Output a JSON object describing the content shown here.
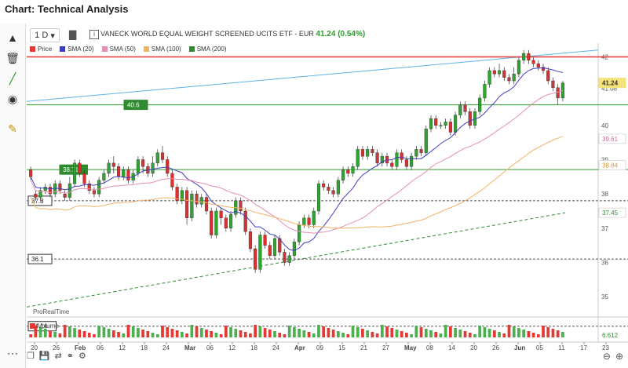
{
  "app_title": "Chart: Technical Analysis",
  "timeframe": "1 D",
  "instrument": {
    "name": "VANECK WORLD EQUAL WEIGHT SCREENED UCITS ETF - EUR",
    "price": "41.24 (0.54%)"
  },
  "legend": [
    {
      "label": "Price",
      "color": "#e53935"
    },
    {
      "label": "SMA (20)",
      "color": "#3f3fbf"
    },
    {
      "label": "SMA (50)",
      "color": "#e58fb5"
    },
    {
      "label": "SMA (100)",
      "color": "#f2b365"
    },
    {
      "label": "SMA (200)",
      "color": "#2e8b2e"
    }
  ],
  "toolbar_icons": [
    "pointer-icon",
    "trash-icon",
    "draw-lines-icon",
    "eye-icon",
    "pencil-icon",
    "more-icon"
  ],
  "bottom_icons": [
    "screenshot-icon",
    "save-icon",
    "share-icon",
    "link-icon",
    "settings-icon"
  ],
  "zoom_icons": [
    "zoom-out-icon",
    "zoom-in-icon"
  ],
  "volume_label": "Volume",
  "realtime_label": "ProRealTime",
  "volume_value": "6.612",
  "chart_data": {
    "type": "candlestick",
    "ylim": [
      34.5,
      42.4
    ],
    "y_ticks": [
      "42",
      "41.08",
      "40",
      "39",
      "38",
      "37",
      "36",
      "35"
    ],
    "x_ticks": [
      "20",
      "26",
      "Feb",
      "06",
      "12",
      "18",
      "24",
      "Mar",
      "06",
      "12",
      "18",
      "24",
      "Apr",
      "09",
      "15",
      "21",
      "27",
      "May",
      "08",
      "14",
      "20",
      "26",
      "Jun",
      "05",
      "11",
      "17",
      "23"
    ],
    "right_labels": [
      {
        "text": "41.24",
        "value": 41.24,
        "bg": "#f4e27a",
        "color": "#333"
      },
      {
        "text": "39.61",
        "value": 39.61,
        "bg": "#fff",
        "color": "#d06a9a"
      },
      {
        "text": "38.84",
        "value": 38.84,
        "bg": "#fff",
        "color": "#d69a3a"
      },
      {
        "text": "37.45",
        "value": 37.45,
        "bg": "#fff",
        "color": "#2e8b2e"
      }
    ],
    "hlines": [
      {
        "value": 42.0,
        "color": "#e53935",
        "style": "solid",
        "label": ""
      },
      {
        "value": 40.6,
        "color": "#2e9d2e",
        "style": "solid",
        "label": "40.6"
      },
      {
        "value": 38.71,
        "color": "#2e9d2e",
        "style": "solid",
        "label": "38.71"
      },
      {
        "value": 37.8,
        "color": "#555",
        "style": "dashed",
        "label": "37.8"
      },
      {
        "value": 36.1,
        "color": "#555",
        "style": "dashed",
        "label": "36.1"
      },
      {
        "value": 34.14,
        "color": "#555",
        "style": "dashed",
        "label": "34.14"
      }
    ],
    "candles": [
      [
        38.7,
        38.5,
        38.8,
        38.4
      ],
      [
        38.0,
        37.9,
        38.1,
        37.8
      ],
      [
        37.9,
        38.1,
        38.2,
        37.8
      ],
      [
        38.1,
        38.2,
        38.3,
        38.0
      ],
      [
        38.2,
        38.0,
        38.3,
        37.9
      ],
      [
        38.0,
        38.3,
        38.4,
        37.9
      ],
      [
        38.3,
        38.1,
        38.4,
        38.0
      ],
      [
        38.0,
        37.9,
        38.1,
        37.8
      ],
      [
        37.9,
        38.3,
        38.5,
        37.8
      ],
      [
        38.3,
        38.9,
        39.0,
        38.2
      ],
      [
        38.9,
        38.6,
        39.0,
        38.5
      ],
      [
        38.6,
        38.3,
        38.7,
        38.2
      ],
      [
        38.3,
        38.1,
        38.4,
        38.0
      ],
      [
        38.1,
        38.0,
        38.2,
        37.9
      ],
      [
        38.0,
        38.4,
        38.5,
        37.9
      ],
      [
        38.4,
        38.6,
        38.7,
        38.3
      ],
      [
        38.6,
        38.9,
        39.0,
        38.5
      ],
      [
        38.9,
        38.8,
        39.1,
        38.6
      ],
      [
        38.8,
        38.5,
        38.9,
        38.4
      ],
      [
        38.5,
        38.7,
        38.8,
        38.4
      ],
      [
        38.7,
        38.4,
        38.8,
        38.3
      ],
      [
        38.4,
        38.6,
        38.7,
        38.3
      ],
      [
        38.6,
        39.0,
        39.1,
        38.5
      ],
      [
        39.0,
        38.8,
        39.1,
        38.6
      ],
      [
        38.8,
        38.6,
        38.9,
        38.5
      ],
      [
        38.6,
        38.9,
        39.1,
        38.5
      ],
      [
        38.9,
        39.2,
        39.3,
        38.8
      ],
      [
        39.2,
        39.0,
        39.4,
        38.9
      ],
      [
        39.0,
        38.6,
        39.1,
        38.5
      ],
      [
        38.6,
        38.2,
        38.7,
        38.1
      ],
      [
        38.2,
        37.8,
        38.3,
        37.7
      ],
      [
        37.8,
        38.1,
        38.2,
        37.7
      ],
      [
        38.1,
        37.3,
        38.2,
        37.1
      ],
      [
        37.3,
        38.0,
        38.1,
        37.2
      ],
      [
        38.0,
        37.7,
        38.1,
        37.6
      ],
      [
        37.7,
        37.9,
        38.0,
        37.6
      ],
      [
        37.9,
        37.5,
        38.0,
        37.4
      ],
      [
        37.5,
        36.8,
        37.6,
        36.7
      ],
      [
        36.8,
        37.5,
        37.6,
        36.7
      ],
      [
        37.5,
        37.3,
        37.6,
        37.1
      ],
      [
        37.3,
        37.0,
        37.4,
        36.9
      ],
      [
        37.0,
        37.4,
        37.5,
        36.9
      ],
      [
        37.4,
        37.8,
        37.9,
        37.3
      ],
      [
        37.8,
        37.5,
        37.9,
        37.4
      ],
      [
        37.5,
        36.9,
        37.6,
        36.8
      ],
      [
        36.9,
        36.4,
        37.0,
        36.3
      ],
      [
        36.4,
        35.8,
        36.5,
        35.7
      ],
      [
        35.8,
        36.8,
        36.9,
        35.7
      ],
      [
        36.8,
        36.5,
        36.9,
        36.4
      ],
      [
        36.5,
        36.2,
        36.6,
        36.1
      ],
      [
        36.2,
        36.7,
        36.8,
        36.1
      ],
      [
        36.7,
        36.3,
        36.8,
        36.2
      ],
      [
        36.3,
        36.0,
        36.4,
        35.9
      ],
      [
        36.0,
        36.2,
        36.3,
        35.9
      ],
      [
        36.2,
        36.6,
        36.7,
        36.1
      ],
      [
        36.6,
        37.1,
        37.2,
        36.5
      ],
      [
        37.1,
        37.3,
        37.4,
        37.0
      ],
      [
        37.3,
        37.1,
        37.4,
        37.0
      ],
      [
        37.1,
        37.5,
        37.6,
        37.0
      ],
      [
        37.5,
        38.3,
        38.4,
        37.4
      ],
      [
        38.3,
        38.2,
        38.4,
        38.1
      ],
      [
        38.2,
        38.1,
        38.3,
        38.0
      ],
      [
        38.1,
        38.0,
        38.2,
        37.9
      ],
      [
        38.0,
        38.4,
        38.5,
        37.9
      ],
      [
        38.4,
        38.7,
        38.8,
        38.3
      ],
      [
        38.7,
        38.6,
        38.8,
        38.5
      ],
      [
        38.6,
        38.8,
        38.9,
        38.5
      ],
      [
        38.8,
        39.3,
        39.4,
        38.7
      ],
      [
        39.3,
        39.1,
        39.4,
        39.0
      ],
      [
        39.1,
        39.3,
        39.4,
        39.0
      ],
      [
        39.3,
        39.2,
        39.4,
        39.1
      ],
      [
        39.2,
        38.9,
        39.3,
        38.8
      ],
      [
        38.9,
        39.1,
        39.2,
        38.8
      ],
      [
        39.1,
        38.9,
        39.2,
        38.8
      ],
      [
        38.9,
        38.8,
        39.0,
        38.7
      ],
      [
        38.8,
        39.2,
        39.3,
        38.7
      ],
      [
        39.2,
        39.0,
        39.3,
        38.9
      ],
      [
        39.0,
        38.8,
        39.1,
        38.7
      ],
      [
        38.8,
        39.1,
        39.2,
        38.7
      ],
      [
        39.1,
        39.3,
        39.4,
        39.0
      ],
      [
        39.3,
        39.2,
        39.4,
        39.1
      ],
      [
        39.2,
        39.9,
        40.0,
        39.1
      ],
      [
        39.9,
        40.2,
        40.3,
        39.8
      ],
      [
        40.2,
        40.0,
        40.3,
        39.9
      ],
      [
        40.0,
        40.0,
        40.1,
        39.9
      ],
      [
        40.0,
        40.1,
        40.2,
        39.9
      ],
      [
        40.1,
        39.8,
        40.2,
        39.7
      ],
      [
        39.8,
        40.3,
        40.4,
        39.7
      ],
      [
        40.3,
        40.6,
        40.7,
        40.2
      ],
      [
        40.6,
        40.4,
        40.7,
        40.3
      ],
      [
        40.4,
        40.0,
        40.5,
        39.9
      ],
      [
        40.0,
        40.4,
        40.5,
        39.9
      ],
      [
        40.4,
        40.8,
        40.9,
        40.3
      ],
      [
        40.8,
        41.2,
        41.3,
        40.7
      ],
      [
        41.2,
        41.6,
        41.7,
        41.1
      ],
      [
        41.6,
        41.5,
        41.7,
        41.4
      ],
      [
        41.5,
        41.6,
        41.8,
        41.4
      ],
      [
        41.6,
        41.4,
        41.7,
        41.3
      ],
      [
        41.4,
        41.3,
        41.5,
        41.2
      ],
      [
        41.3,
        41.5,
        41.7,
        41.2
      ],
      [
        41.5,
        41.9,
        42.0,
        41.4
      ],
      [
        41.9,
        42.1,
        42.2,
        41.8
      ],
      [
        42.1,
        41.9,
        42.2,
        41.8
      ],
      [
        41.9,
        41.8,
        42.0,
        41.7
      ],
      [
        41.8,
        41.7,
        41.9,
        41.6
      ],
      [
        41.7,
        41.6,
        41.8,
        41.5
      ],
      [
        41.6,
        41.3,
        41.7,
        41.2
      ],
      [
        41.3,
        41.1,
        41.4,
        41.0
      ],
      [
        41.1,
        40.8,
        41.2,
        40.6
      ],
      [
        40.8,
        41.24,
        41.3,
        40.7
      ]
    ]
  }
}
